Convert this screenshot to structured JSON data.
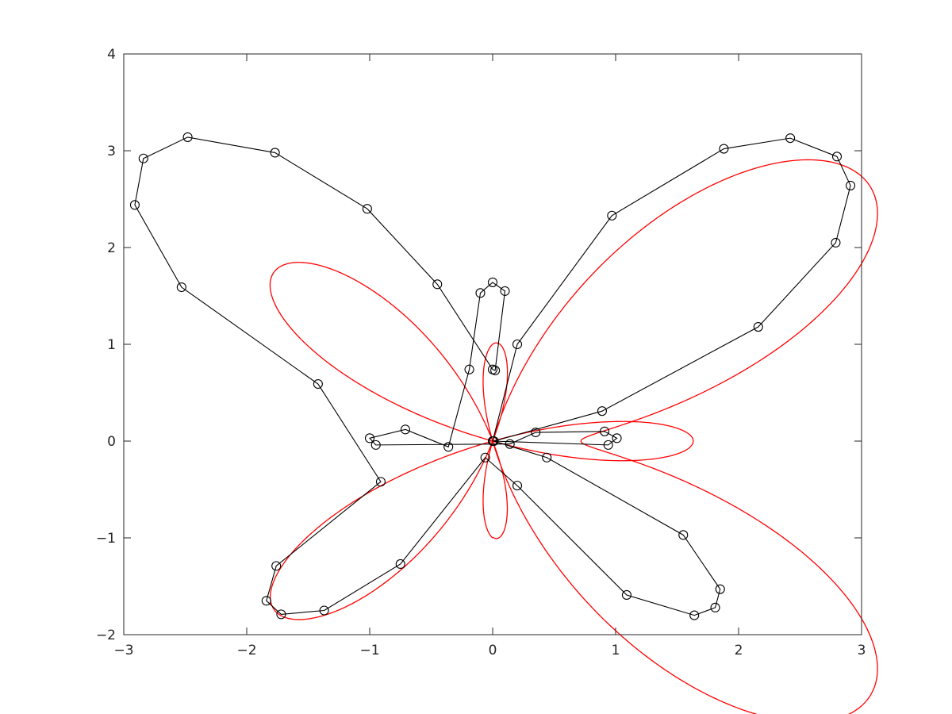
{
  "chart_data": {
    "type": "line",
    "title": "",
    "xlabel": "",
    "ylabel": "",
    "xlim": [
      -3,
      3
    ],
    "ylim": [
      -2,
      4
    ],
    "xticks": [
      -3,
      -2,
      -1,
      0,
      1,
      2,
      3
    ],
    "yticks": [
      -2,
      -1,
      0,
      1,
      2,
      3,
      4
    ],
    "xtick_labels": [
      "−3",
      "−2",
      "−1",
      "0",
      "1",
      "2",
      "3"
    ],
    "ytick_labels": [
      "−2",
      "−1",
      "0",
      "1",
      "2",
      "3",
      "4"
    ],
    "grid": false,
    "box": true,
    "series": [
      {
        "style": "black line with circle markers",
        "color": "#000000",
        "marker": "circle",
        "x": [
          0,
          0.2,
          0.97,
          1.88,
          2.42,
          2.8,
          2.91,
          2.79,
          2.16,
          0.89,
          0.01,
          0.44,
          1.55,
          1.85,
          1.81,
          1.64,
          1.09,
          0.2,
          -0.06,
          -0.75,
          -1.37,
          -1.72,
          -1.84,
          -1.76,
          -0.91,
          -1.42,
          -2.53,
          -2.91,
          -2.84,
          -2.48,
          -1.77,
          -1.02,
          -0.45,
          0,
          0.02,
          0.1,
          0,
          -0.1,
          -0.19,
          -0.36,
          -0.71,
          -1.0,
          -0.95,
          0.14,
          0.35,
          0.91,
          1.01,
          0.94,
          0
        ],
        "y": [
          0,
          1.0,
          2.33,
          3.02,
          3.13,
          2.94,
          2.64,
          2.05,
          1.18,
          0.31,
          0,
          -0.17,
          -0.97,
          -1.53,
          -1.72,
          -1.8,
          -1.59,
          -0.46,
          -0.17,
          -1.27,
          -1.75,
          -1.79,
          -1.65,
          -1.29,
          -0.42,
          0.59,
          1.59,
          2.44,
          2.92,
          3.14,
          2.98,
          2.4,
          1.62,
          0.74,
          0.73,
          1.55,
          1.64,
          1.53,
          0.74,
          -0.06,
          0.12,
          0.03,
          -0.04,
          -0.03,
          0.09,
          0.1,
          0.03,
          -0.04,
          0
        ]
      },
      {
        "style": "red smooth curve",
        "color": "#ff0000",
        "marker": "none",
        "equation": "butterfly curve r = exp(sin t) - 2 cos(4t) + sin^5((2t - pi)/24), x = r sin t, y = r cos t, t in [0, 2pi]"
      }
    ]
  }
}
